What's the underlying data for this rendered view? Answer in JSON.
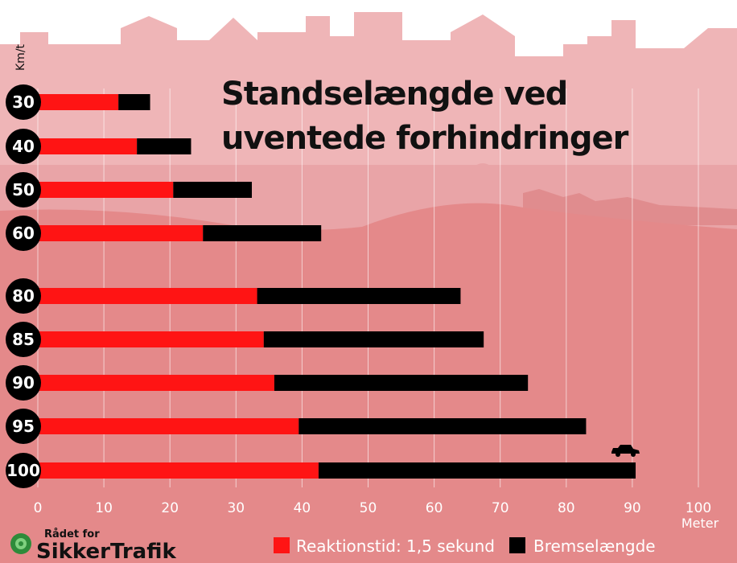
{
  "chart_data": {
    "type": "bar",
    "stacked": true,
    "orientation": "horizontal",
    "title": "Standselængde ved uventede forhindringer",
    "title_lines": [
      "Standselængde ved",
      "uventede forhindringer"
    ],
    "ylabel": "Km/t",
    "xlabel_unit": "Meter",
    "categories": [
      "30",
      "40",
      "50",
      "60",
      "80",
      "85",
      "90",
      "95",
      "100"
    ],
    "series": [
      {
        "name": "Reaktionstid: 1,5 sekund",
        "color": "#ff1414",
        "values": [
          12.2,
          15,
          20.5,
          25,
          33.2,
          34.2,
          35.8,
          39.5,
          42.5
        ]
      },
      {
        "name": "Bremselængde",
        "color": "#000000",
        "values": [
          4.8,
          8.2,
          11.9,
          17.9,
          30.8,
          33.3,
          38.4,
          43.5,
          48
        ]
      }
    ],
    "xlim": [
      0,
      100
    ],
    "xticks": [
      "0",
      "10",
      "20",
      "30",
      "40",
      "50",
      "60",
      "70",
      "80",
      "90",
      "100"
    ],
    "grid": true
  },
  "colors": {
    "background": "#e4898a",
    "skyline": "#efb5b7",
    "hill": "#e9a4a7"
  },
  "brand": {
    "small": "Rådet for",
    "big": "SikkerTrafik"
  },
  "icons": [
    "car-icon",
    "logo-icon"
  ]
}
